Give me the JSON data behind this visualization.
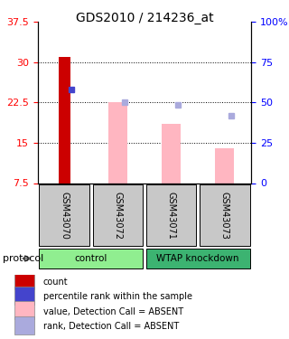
{
  "title": "GDS2010 / 214236_at",
  "samples": [
    "GSM43070",
    "GSM43072",
    "GSM43071",
    "GSM43073"
  ],
  "ylim_left": [
    7.5,
    37.5
  ],
  "ylim_right": [
    0,
    100
  ],
  "yticks_left": [
    7.5,
    15.0,
    22.5,
    30.0,
    37.5
  ],
  "yticks_right": [
    0,
    25,
    50,
    75,
    100
  ],
  "ytick_labels_right": [
    "0",
    "25",
    "50",
    "75",
    "100%"
  ],
  "ytick_labels_left": [
    "7.5",
    "15",
    "22.5",
    "30",
    "37.5"
  ],
  "red_bars": [
    31.0,
    null,
    null,
    null
  ],
  "pink_bars": [
    null,
    22.5,
    18.5,
    14.0
  ],
  "blue_squares": [
    25.0,
    22.5,
    22.0,
    20.0
  ],
  "blue_sq_absent": [
    false,
    true,
    true,
    true
  ],
  "groups": [
    {
      "label": "control",
      "samples": [
        0,
        1
      ],
      "color": "#90EE90"
    },
    {
      "label": "WTAP knockdown",
      "samples": [
        2,
        3
      ],
      "color": "#3CB371"
    }
  ],
  "bar_bottom": 7.5,
  "red_bar_color": "#CC0000",
  "pink_bar_color": "#FFB6C1",
  "blue_sq_color": "#4444CC",
  "blue_sq_absent_color": "#AAAADD",
  "legend": [
    {
      "color": "#CC0000",
      "label": "count"
    },
    {
      "color": "#4444CC",
      "label": "percentile rank within the sample"
    },
    {
      "color": "#FFB6C1",
      "label": "value, Detection Call = ABSENT"
    },
    {
      "color": "#AAAADD",
      "label": "rank, Detection Call = ABSENT"
    }
  ],
  "protocol_label": "protocol",
  "grid_yticks": [
    15.0,
    22.5,
    30.0
  ],
  "sample_col_color": "#C8C8C8"
}
